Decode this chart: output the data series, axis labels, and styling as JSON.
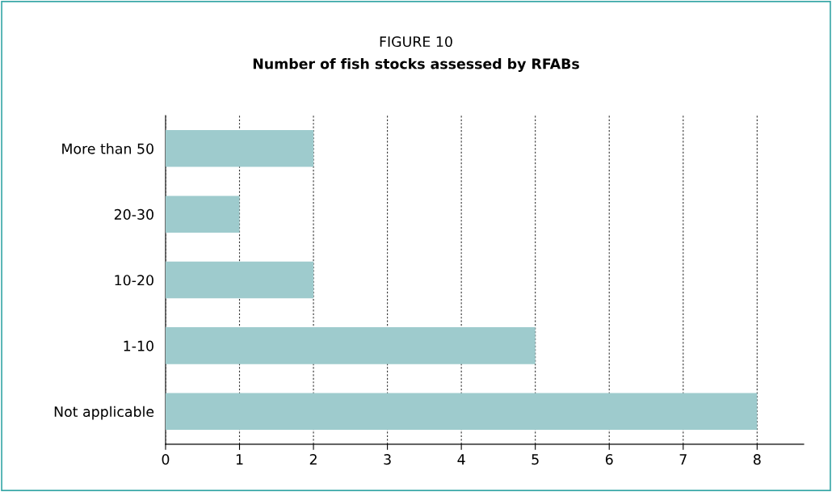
{
  "chart_data": {
    "type": "bar",
    "orientation": "horizontal",
    "title": "FIGURE 10",
    "subtitle": "Number of fish stocks assessed by RFABs",
    "categories": [
      "More than 50",
      "20-30",
      "10-20",
      "1-10",
      "Not applicable"
    ],
    "values": [
      2,
      1,
      2,
      5,
      8
    ],
    "color": "#9ecbcd",
    "xlim": [
      0,
      8.63
    ],
    "xticks": [
      0,
      1,
      2,
      3,
      4,
      5,
      6,
      7,
      8
    ],
    "grid": "x"
  }
}
